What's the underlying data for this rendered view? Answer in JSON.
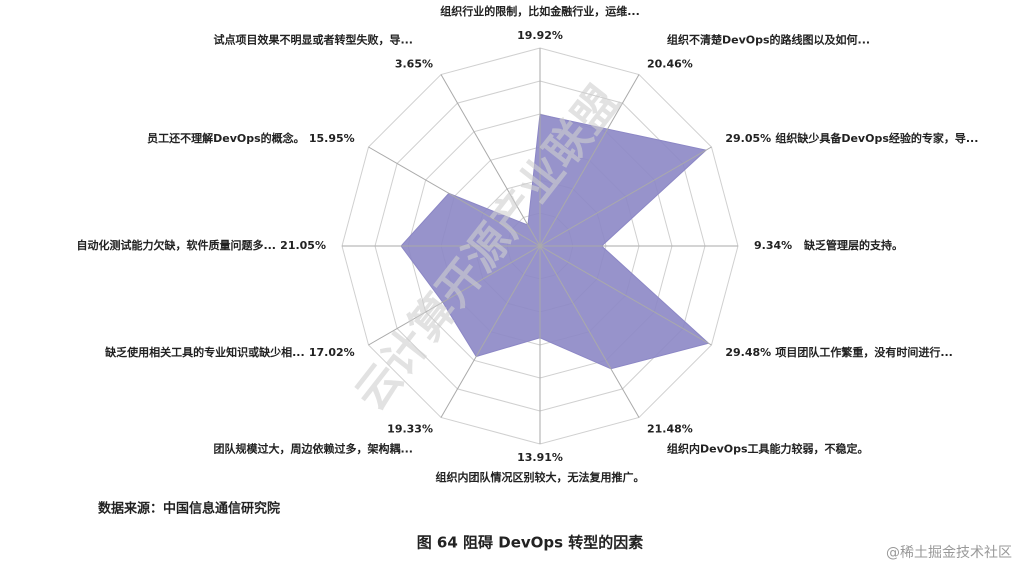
{
  "chart_data": {
    "type": "radar",
    "categories": [
      "组织行业的限制，比如金融行业，运维...",
      "组织不清楚DevOps的路线图以及如何...",
      "组织缺少具备DevOps经验的专家，导...",
      "缺乏管理层的支持。",
      "项目团队工作繁重，没有时间进行...",
      "组织内DevOps工具能力较弱，不稳定。",
      "组织内团队情况区别较大，无法复用推广。",
      "团队规模过大，周边依赖过多，架构耦...",
      "缺乏使用相关工具的专业知识或缺少相...",
      "自动化测试能力欠缺，软件质量问题多...",
      "员工还不理解DevOps的概念。",
      "试点项目效果不明显或者转型失败，导..."
    ],
    "values": [
      19.92,
      20.46,
      29.05,
      9.34,
      29.48,
      21.48,
      13.91,
      19.33,
      17.02,
      21.05,
      15.95,
      3.65
    ],
    "value_labels": [
      "19.92%",
      "20.46%",
      "29.05%",
      "9.34%",
      "29.48%",
      "21.48%",
      "13.91%",
      "19.33%",
      "17.02%",
      "21.05%",
      "15.95%",
      "3.65%"
    ],
    "color": "#8c87c5",
    "ylim": [
      0,
      30
    ],
    "yticks": [
      5,
      10,
      15,
      20,
      25,
      30
    ],
    "grid": true
  },
  "source": "数据来源：中国信息通信研究院",
  "caption": "图 64 阻碍 DevOps 转型的因素",
  "watermark": "云计算开源产业联盟",
  "footer": "@稀土掘金技术社区"
}
